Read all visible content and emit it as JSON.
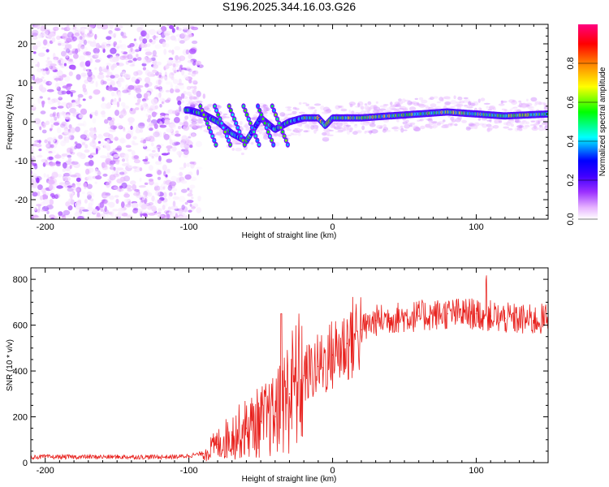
{
  "title": "S196.2025.344.16.03.G26",
  "chart_data": [
    {
      "type": "heatmap",
      "title": "S196.2025.344.16.03.G26",
      "xlabel": "Height of straight line (km)",
      "ylabel": "Frequency (Hz)",
      "xlim": [
        -210,
        150
      ],
      "ylim": [
        -25,
        25
      ],
      "xticks": [
        -200,
        -100,
        0,
        100
      ],
      "yticks": [
        -20,
        -10,
        0,
        10,
        20
      ],
      "colorbar": {
        "label": "Normalized spectral amplitude",
        "range": [
          0.0,
          1.0
        ],
        "ticks": [
          0.0,
          0.2,
          0.4,
          0.6,
          0.8
        ],
        "colormap": [
          "#ffffff",
          "#e6b3ff",
          "#9b30ff",
          "#4000ff",
          "#0000ff",
          "#00ffff",
          "#00ff00",
          "#ffff00",
          "#ff8000",
          "#ff0000",
          "#ff0080"
        ]
      },
      "ridge": {
        "description": "dominant tone along height",
        "x": [
          -100,
          -90,
          -80,
          -70,
          -60,
          -50,
          -40,
          -30,
          -20,
          -10,
          -5,
          0,
          10,
          20,
          40,
          60,
          80,
          100,
          120,
          150
        ],
        "y": [
          3,
          2,
          0,
          -3,
          -5,
          1,
          -2,
          0,
          1,
          1,
          -1,
          1,
          1,
          1,
          1.5,
          2,
          2.5,
          2,
          1.5,
          2
        ]
      },
      "noise_region": [
        -210,
        -95
      ]
    },
    {
      "type": "line",
      "xlabel": "Height of straight line (km)",
      "ylabel": "SNR (10 * v/v)",
      "xlim": [
        -210,
        150
      ],
      "ylim": [
        0,
        850
      ],
      "xticks": [
        -200,
        -100,
        0,
        100
      ],
      "yticks": [
        0,
        200,
        400,
        600,
        800
      ],
      "series": [
        {
          "name": "SNR",
          "color": "#e8211d",
          "x": [
            -210,
            -190,
            -170,
            -150,
            -130,
            -110,
            -100,
            -90,
            -80,
            -70,
            -60,
            -50,
            -40,
            -30,
            -20,
            -10,
            0,
            10,
            20,
            30,
            40,
            60,
            80,
            100,
            110,
            120,
            140,
            150
          ],
          "y": [
            25,
            25,
            25,
            25,
            25,
            25,
            30,
            40,
            80,
            120,
            150,
            180,
            200,
            300,
            380,
            420,
            470,
            520,
            580,
            620,
            630,
            640,
            650,
            650,
            640,
            630,
            620,
            630
          ]
        }
      ]
    }
  ]
}
